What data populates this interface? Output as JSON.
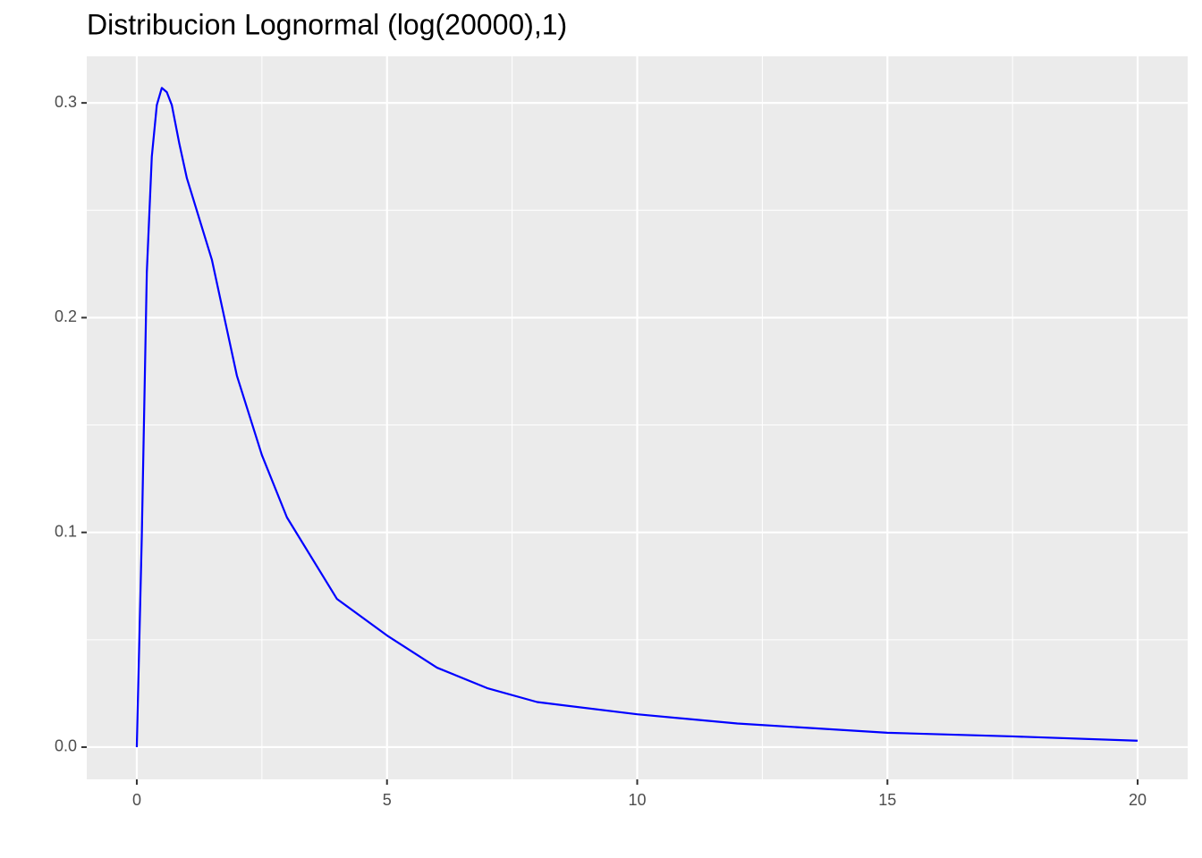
{
  "chart_data": {
    "type": "line",
    "title": "Distribucion Lognormal (log(20000),1)",
    "x": [
      0,
      0.1,
      0.2,
      0.3,
      0.4,
      0.5,
      0.6,
      0.7,
      0.85,
      1,
      1.5,
      2,
      2.5,
      3,
      4,
      5,
      6,
      7,
      8,
      10,
      12,
      15,
      17.5,
      20
    ],
    "series": [
      {
        "color": "#0000ff",
        "values": [
          0,
          0.098,
          0.221,
          0.275,
          0.299,
          0.307,
          0.305,
          0.299,
          0.281,
          0.265,
          0.227,
          0.173,
          0.136,
          0.107,
          0.069,
          0.052,
          0.037,
          0.0275,
          0.021,
          0.0153,
          0.011,
          0.0067,
          0.005,
          0.003
        ]
      }
    ],
    "xlim": [
      -1,
      21
    ],
    "ylim": [
      -0.015,
      0.3217
    ],
    "xticks": [
      0,
      5,
      10,
      15,
      20
    ],
    "yticks": [
      {
        "value": 0,
        "label": "0.0"
      },
      0.1,
      0.2,
      0.3
    ],
    "grid": true
  }
}
